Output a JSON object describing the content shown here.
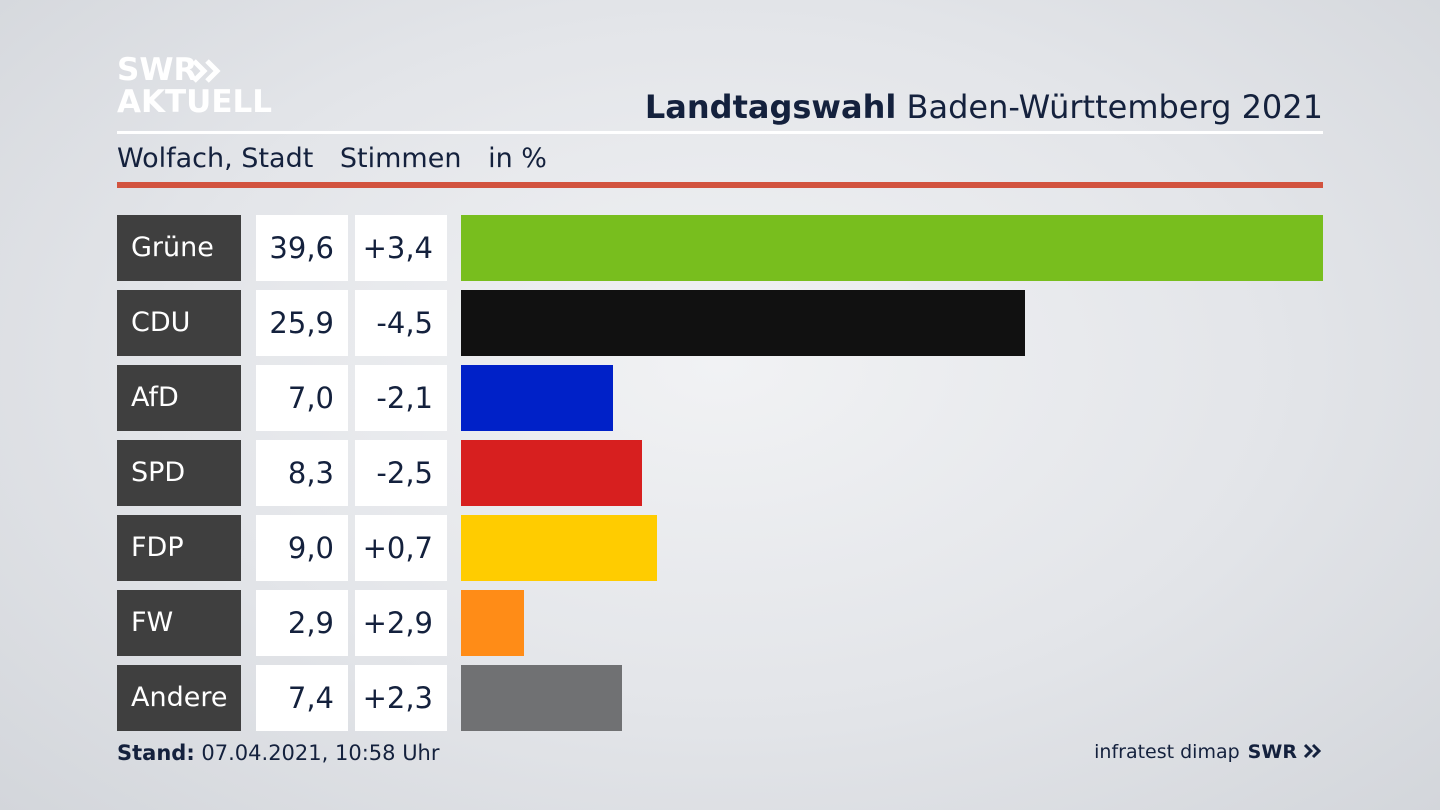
{
  "header": {
    "logo_line1": "SWR",
    "logo_line2": "AKTUELL",
    "title_bold": "Landtagswahl",
    "title_rest": "Baden-Württemberg 2021",
    "location": "Wolfach, Stadt",
    "measure": "Stimmen",
    "unit": "in %"
  },
  "footer": {
    "stand_label": "Stand:",
    "stand_value": "07.04.2021, 10:58 Uhr",
    "source": "infratest dimap",
    "source_brand": "SWR"
  },
  "colors": {
    "accent_rule": "#d2533f",
    "label_bg": "#3f3f3f"
  },
  "chart_data": {
    "type": "bar",
    "orientation": "horizontal",
    "categories": [
      "Grüne",
      "CDU",
      "AfD",
      "SPD",
      "FDP",
      "FW",
      "Andere"
    ],
    "values": [
      39.6,
      25.9,
      7.0,
      8.3,
      9.0,
      2.9,
      7.4
    ],
    "values_display": [
      "39,6",
      "25,9",
      "7,0",
      "8,3",
      "9,0",
      "2,9",
      "7,4"
    ],
    "changes": [
      3.4,
      -4.5,
      -2.1,
      -2.5,
      0.7,
      2.9,
      2.3
    ],
    "changes_display": [
      "+3,4",
      "-4,5",
      "-2,1",
      "-2,5",
      "+0,7",
      "+2,9",
      "+2,3"
    ],
    "colors": [
      "#78be1e",
      "#111111",
      "#0021c8",
      "#d71f1f",
      "#ffcc00",
      "#ff8c17",
      "#707173"
    ],
    "xlim": [
      0,
      39.6
    ],
    "grid": false,
    "legend": "none"
  }
}
